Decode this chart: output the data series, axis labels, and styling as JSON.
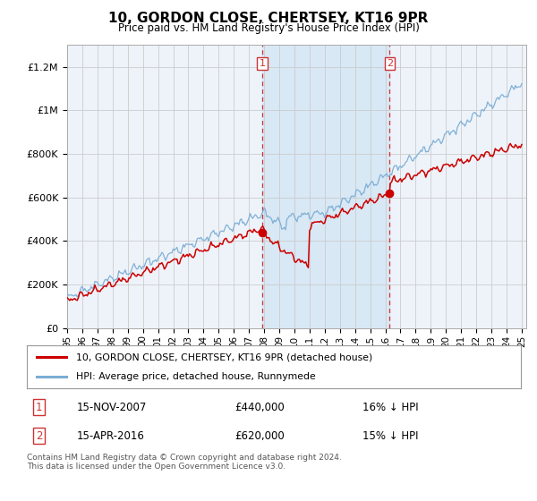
{
  "title": "10, GORDON CLOSE, CHERTSEY, KT16 9PR",
  "subtitle": "Price paid vs. HM Land Registry's House Price Index (HPI)",
  "ylabel_ticks": [
    "£0",
    "£200K",
    "£400K",
    "£600K",
    "£800K",
    "£1M",
    "£1.2M"
  ],
  "ytick_values": [
    0,
    200000,
    400000,
    600000,
    800000,
    1000000,
    1200000
  ],
  "ylim": [
    0,
    1300000
  ],
  "xlim_start": 1995.0,
  "xlim_end": 2025.3,
  "hpi_color": "#7aadd4",
  "price_color": "#cc0000",
  "bg_color": "#ffffff",
  "plot_bg_color": "#eef3fa",
  "grid_color": "#cccccc",
  "highlight_bg": "#d8e8f5",
  "sale1_x": 2007.87,
  "sale1_y": 440000,
  "sale2_x": 2016.29,
  "sale2_y": 620000,
  "legend_label1": "10, GORDON CLOSE, CHERTSEY, KT16 9PR (detached house)",
  "legend_label2": "HPI: Average price, detached house, Runnymede",
  "note1_date": "15-NOV-2007",
  "note1_price": "£440,000",
  "note1_hpi": "16% ↓ HPI",
  "note2_date": "15-APR-2016",
  "note2_price": "£620,000",
  "note2_hpi": "15% ↓ HPI",
  "footer": "Contains HM Land Registry data © Crown copyright and database right 2024.\nThis data is licensed under the Open Government Licence v3.0."
}
